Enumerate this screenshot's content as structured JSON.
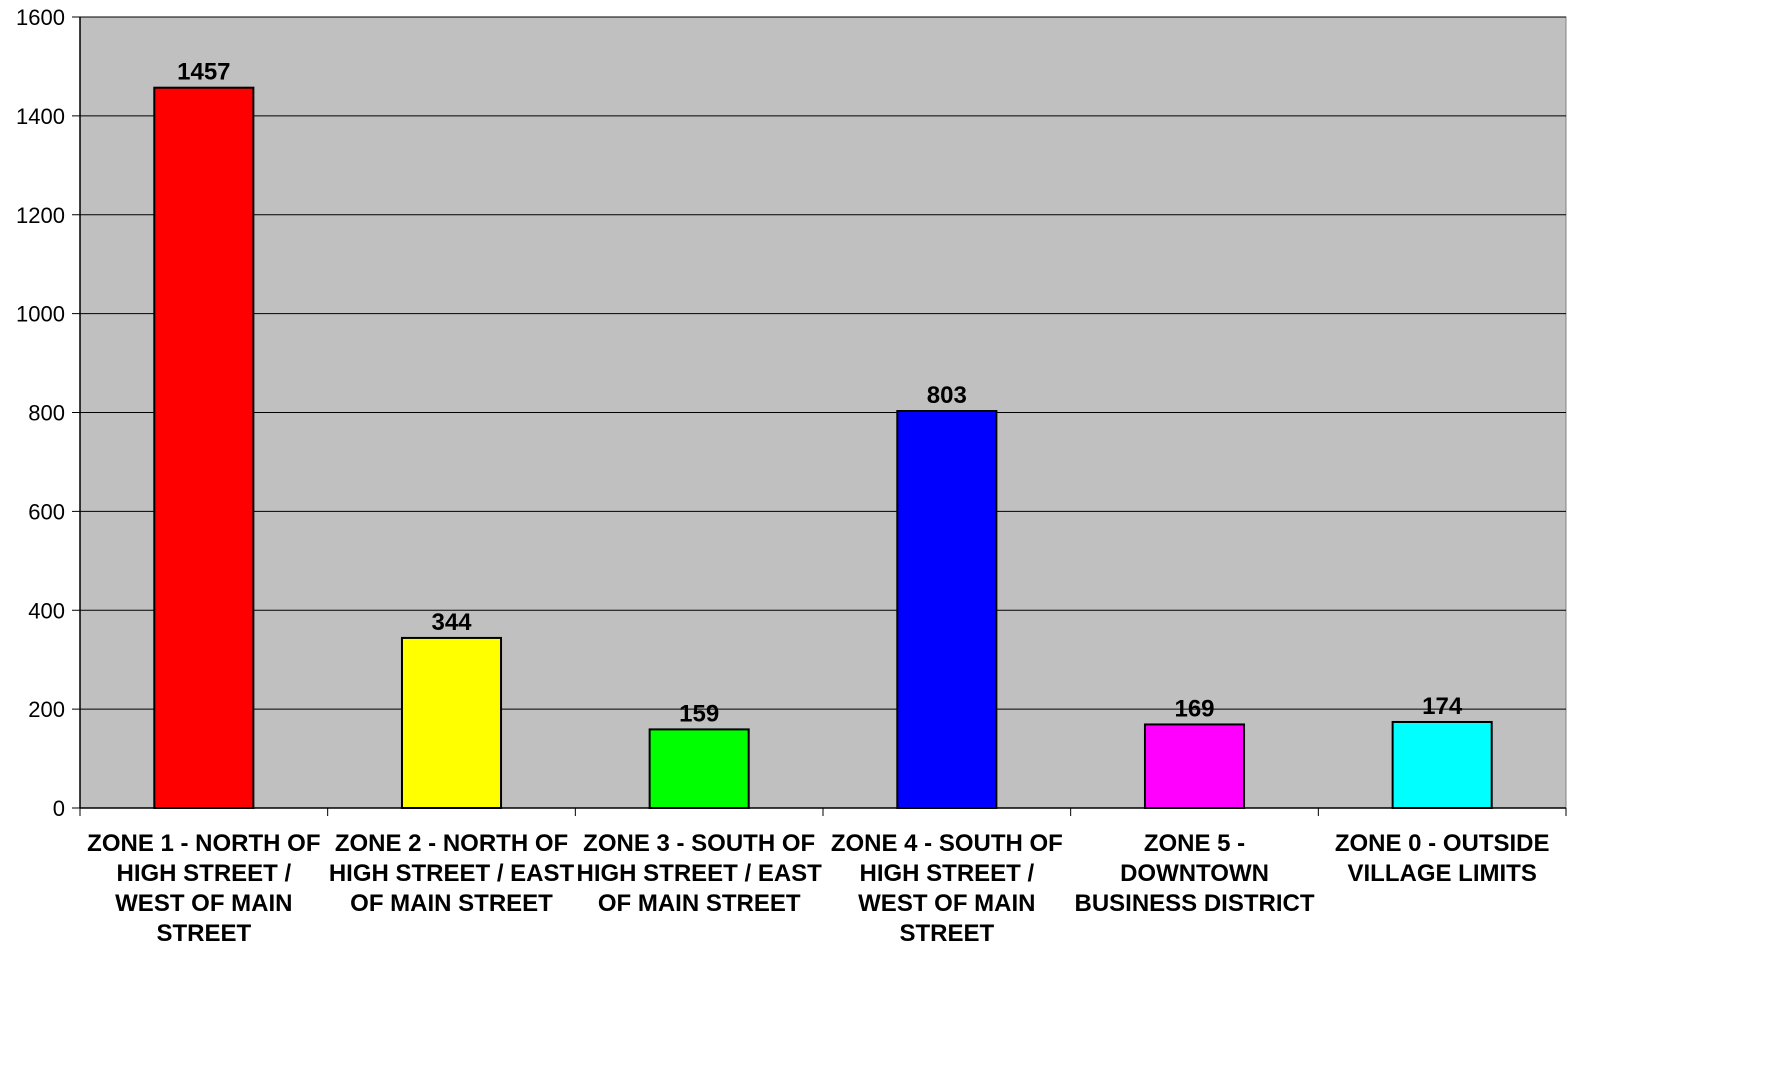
{
  "chart_data": {
    "type": "bar",
    "title": "",
    "xlabel": "",
    "ylabel": "",
    "ylim": [
      0,
      1600
    ],
    "y_ticks": [
      0,
      200,
      400,
      600,
      800,
      1000,
      1200,
      1400,
      1600
    ],
    "grid": true,
    "legend": "none",
    "categories": [
      [
        "ZONE 1 - NORTH OF",
        "HIGH STREET /",
        "WEST OF MAIN",
        "STREET"
      ],
      [
        "ZONE 2 - NORTH OF",
        "HIGH STREET / EAST",
        "OF MAIN STREET"
      ],
      [
        "ZONE 3 - SOUTH OF",
        "HIGH STREET / EAST",
        "OF MAIN STREET"
      ],
      [
        "ZONE 4 - SOUTH OF",
        "HIGH STREET /",
        "WEST OF MAIN",
        "STREET"
      ],
      [
        "ZONE 5 -",
        "DOWNTOWN",
        "BUSINESS DISTRICT"
      ],
      [
        "ZONE 0 - OUTSIDE",
        "VILLAGE LIMITS"
      ]
    ],
    "values": [
      1457,
      344,
      159,
      803,
      169,
      174
    ],
    "data_labels": [
      "1457",
      "344",
      "159",
      "803",
      "169",
      "174"
    ],
    "bar_colors": [
      "#ff0000",
      "#ffff00",
      "#00ff00",
      "#0000ff",
      "#ff00ff",
      "#00ffff"
    ],
    "plot_background": "#c0c0c0"
  }
}
